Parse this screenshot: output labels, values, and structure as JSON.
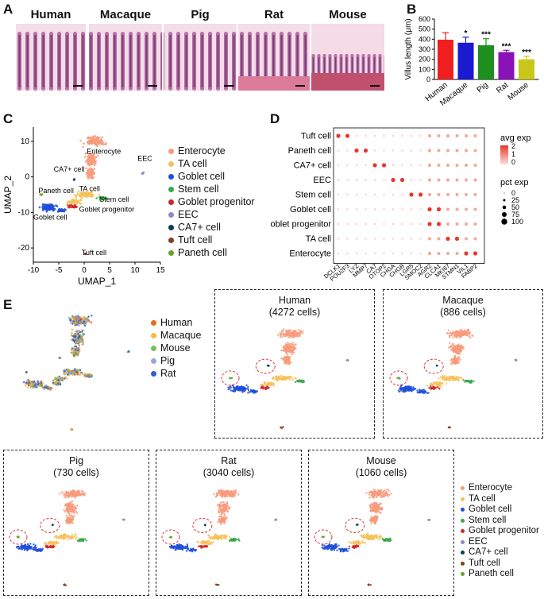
{
  "panels": {
    "a": "A",
    "b": "B",
    "c": "C",
    "d": "D",
    "e": "E"
  },
  "species": [
    "Human",
    "Macaque",
    "Pig",
    "Rat",
    "Mouse"
  ],
  "colors": {
    "enterocyte": "#f79b7c",
    "ta": "#f4c25a",
    "goblet": "#1d4fd8",
    "stem": "#3aa64a",
    "goblet_prog": "#d2262a",
    "eec": "#8f86c9",
    "ca7": "#0b3a5a",
    "tuft": "#8b3a1e",
    "paneth": "#6ba12a",
    "human": "#f06a1c",
    "macaque": "#f4b942",
    "mouse": "#7dbf5a",
    "pig": "#9aa6e0",
    "rat": "#2f5fcf"
  },
  "chart_data": [
    {
      "type": "bar",
      "categories": [
        "Human",
        "Macaque",
        "Pig",
        "Rat",
        "Mouse"
      ],
      "values": [
        395,
        365,
        340,
        272,
        200
      ],
      "errors": [
        70,
        55,
        65,
        18,
        30
      ],
      "significance": [
        "",
        "*",
        "***",
        "***",
        "***"
      ],
      "colors": [
        "#f01e1e",
        "#1a1ad0",
        "#1f8f1f",
        "#8a12b8",
        "#c8c81a"
      ],
      "ylabel": "Villus length (μm)",
      "ylim": [
        0,
        600
      ],
      "yticks": [
        0,
        100,
        200,
        300,
        400,
        500,
        600
      ]
    },
    {
      "type": "scatter",
      "xlabel": "UMAP_1",
      "ylabel": "UMAP_2",
      "xlim": [
        -10,
        15
      ],
      "ylim": [
        -24,
        14
      ],
      "xticks": [
        -10,
        -5,
        0,
        5,
        10,
        15
      ],
      "yticks": [
        10,
        0,
        -10,
        -20
      ],
      "annotations": [
        "Enterocyte",
        "EEC",
        "CA7+ cell",
        "TA cell",
        "Paneth cell",
        "Stem cell",
        "Goblet progenitor",
        "Goblet cell",
        "Tuft cell"
      ]
    },
    {
      "type": "dotplot",
      "rows": [
        "Tuft cell",
        "Paneth cell",
        "CA7+ cell",
        "EEC",
        "Stem cell",
        "Goblet cell",
        "oblet progenitor",
        "TA cell",
        "Enterocyte"
      ],
      "genes": [
        "DCLK1",
        "POU2F3",
        "LYZ",
        "MMP7",
        "CA7",
        "OTOP2",
        "CHGA",
        "CHGB",
        "LGR5",
        "SMOC2",
        "AGR2",
        "CLCA1",
        "MKI67",
        "STMN1",
        "VIL1",
        "FABP2"
      ],
      "highlights": [
        [
          0,
          0
        ],
        [
          0,
          1
        ],
        [
          1,
          2
        ],
        [
          1,
          3
        ],
        [
          2,
          4
        ],
        [
          2,
          5
        ],
        [
          3,
          6
        ],
        [
          3,
          7
        ],
        [
          4,
          8
        ],
        [
          4,
          9
        ],
        [
          5,
          10
        ],
        [
          5,
          11
        ],
        [
          6,
          10
        ],
        [
          6,
          11
        ],
        [
          7,
          12
        ],
        [
          7,
          13
        ],
        [
          8,
          14
        ],
        [
          8,
          15
        ]
      ],
      "avg_exp_legend": {
        "title": "avg exp",
        "ticks": [
          "2",
          "1",
          "0"
        ]
      },
      "pct_exp_legend": {
        "title": "pct exp",
        "ticks": [
          "0",
          "25",
          "50",
          "75",
          "100"
        ]
      }
    }
  ],
  "legend_c": [
    "Enterocyte",
    "TA cell",
    "Goblet cell",
    "Stem cell",
    "Goblet progenitor",
    "EEC",
    "CA7+ cell",
    "Tuft cell",
    "Paneth cell"
  ],
  "legend_e_species": [
    "Human",
    "Macaque",
    "Mouse",
    "Pig",
    "Rat"
  ],
  "legend_e_cells": [
    "Enterocyte",
    "TA cell",
    "Goblet cell",
    "Stem cell",
    "Goblet progenitor",
    "EEC",
    "CA7+ cell",
    "Tuft cell",
    "Paneth cell"
  ],
  "boxes": [
    {
      "name": "Human",
      "cells": "(4272 cells)"
    },
    {
      "name": "Macaque",
      "cells": "(886 cells)"
    },
    {
      "name": "Pig",
      "cells": "(730 cells)"
    },
    {
      "name": "Rat",
      "cells": "(3040 cells)"
    },
    {
      "name": "Mouse",
      "cells": "(1060 cells)"
    }
  ]
}
